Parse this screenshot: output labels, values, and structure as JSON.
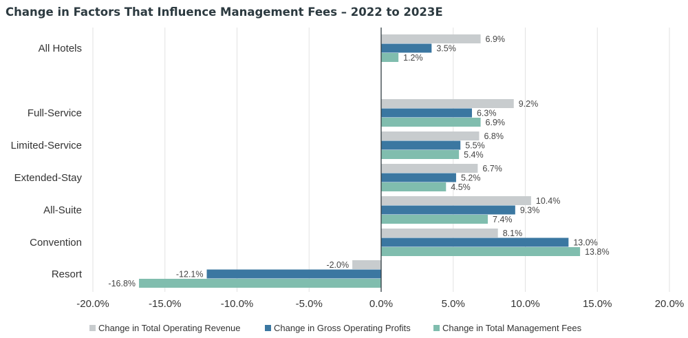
{
  "chart_data": {
    "type": "bar",
    "orientation": "horizontal",
    "title": "Change in Factors That Influence Management Fees – 2022 to 2023E",
    "categories": [
      "All Hotels",
      "Full-Service",
      "Limited-Service",
      "Extended-Stay",
      "All-Suite",
      "Convention",
      "Resort"
    ],
    "series": [
      {
        "name": "Change in Total Operating Revenue",
        "color": "#c8ccce",
        "values": [
          6.9,
          9.2,
          6.8,
          6.7,
          10.4,
          8.1,
          -2.0
        ]
      },
      {
        "name": "Change in Gross Operating Profits",
        "color": "#3b77a1",
        "values": [
          3.5,
          6.3,
          5.5,
          5.2,
          9.3,
          13.0,
          -12.1
        ]
      },
      {
        "name": "Change in Total Management Fees",
        "color": "#80bdae",
        "values": [
          1.2,
          6.9,
          5.4,
          4.5,
          7.4,
          13.8,
          -16.8
        ]
      }
    ],
    "xlim": [
      -20,
      20
    ],
    "xticks": [
      "-20.0%",
      "-15.0%",
      "-10.0%",
      "-5.0%",
      "0.0%",
      "5.0%",
      "10.0%",
      "15.0%",
      "20.0%"
    ],
    "grid": true,
    "legend_position": "bottom"
  }
}
